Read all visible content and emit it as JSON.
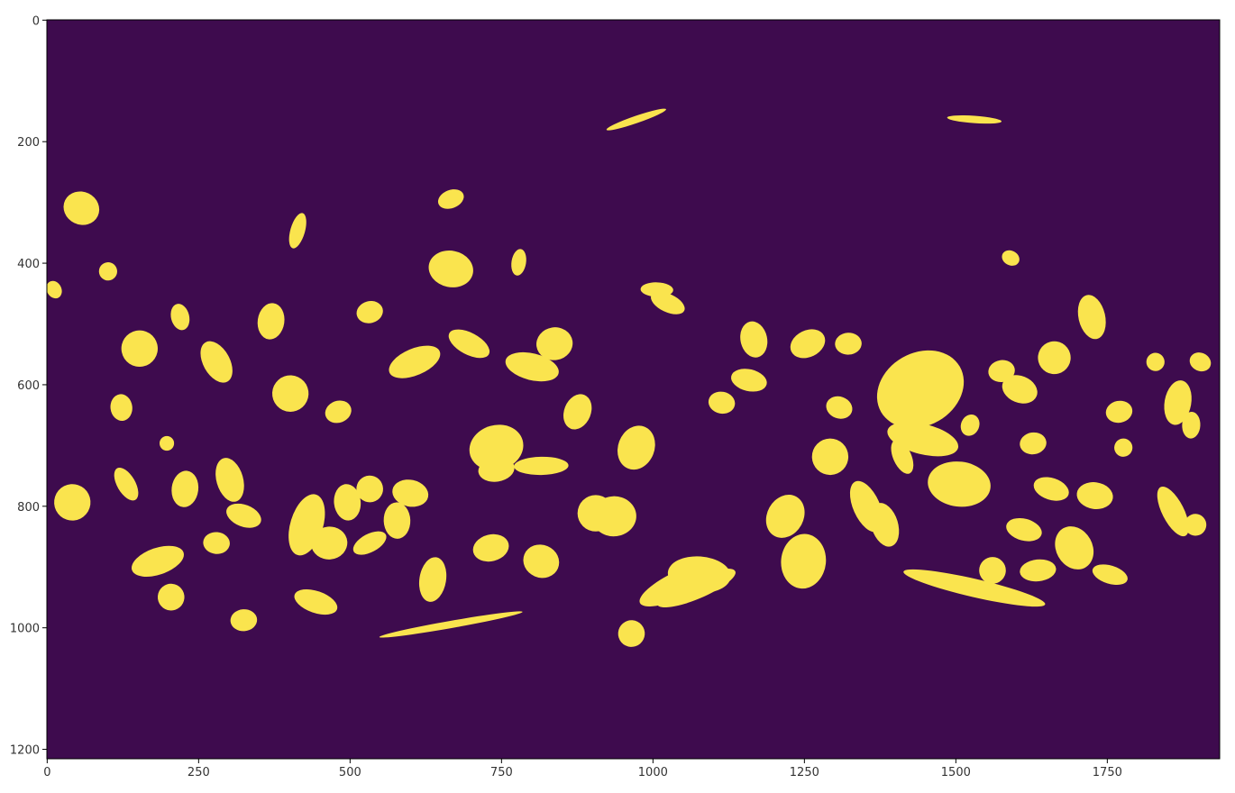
{
  "chart_data": {
    "type": "heatmap",
    "colormap": "viridis",
    "colors": {
      "background": "#3e0b4e",
      "foreground": "#fae44e"
    },
    "values_description_levels": [
      0,
      1
    ],
    "image_size": {
      "width": 1936,
      "height": 1216
    },
    "xlim": [
      0,
      1936
    ],
    "ylim": [
      1216,
      0
    ],
    "xticks": [
      0,
      250,
      500,
      750,
      1000,
      1250,
      1500,
      1750
    ],
    "yticks": [
      0,
      200,
      400,
      600,
      800,
      1000,
      1200
    ],
    "xtick_labels": [
      "0",
      "250",
      "500",
      "750",
      "1000",
      "1250",
      "1500",
      "1750"
    ],
    "ytick_labels": [
      "0",
      "200",
      "400",
      "600",
      "800",
      "1000",
      "1200"
    ],
    "grid": false,
    "regions_value1_ellipses_cx_cy_rx_ry": [
      [
        1442,
        608,
        75,
        60
      ],
      [
        1506,
        764,
        52,
        37
      ],
      [
        742,
        704,
        45,
        37
      ],
      [
        973,
        704,
        30,
        37
      ],
      [
        936,
        817,
        37,
        33
      ],
      [
        1047,
        928,
        75,
        22
      ],
      [
        667,
        410,
        37,
        30
      ],
      [
        153,
        541,
        30,
        30
      ],
      [
        57,
        310,
        30,
        27
      ],
      [
        402,
        615,
        30,
        30
      ],
      [
        481,
        645,
        22,
        18
      ],
      [
        429,
        831,
        27,
        52
      ],
      [
        496,
        794,
        22,
        30
      ],
      [
        1696,
        869,
        30,
        37
      ],
      [
        1730,
        783,
        30,
        22
      ],
      [
        1663,
        556,
        27,
        27
      ],
      [
        1606,
        608,
        30,
        22
      ],
      [
        1293,
        719,
        30,
        30
      ],
      [
        1353,
        801,
        22,
        45
      ],
      [
        1531,
        935,
        120,
        15
      ],
      [
        667,
        995,
        120,
        6
      ],
      [
        965,
        1010,
        22,
        22
      ],
      [
        1077,
        913,
        52,
        30
      ],
      [
        183,
        891,
        45,
        22
      ],
      [
        42,
        794,
        30,
        30
      ],
      [
        466,
        861,
        30,
        27
      ],
      [
        533,
        861,
        30,
        15
      ],
      [
        637,
        921,
        22,
        37
      ],
      [
        733,
        869,
        30,
        22
      ],
      [
        816,
        891,
        30,
        27
      ],
      [
        906,
        812,
        30,
        30
      ],
      [
        607,
        563,
        45,
        22
      ],
      [
        801,
        571,
        45,
        22
      ],
      [
        838,
        533,
        30,
        27
      ],
      [
        697,
        533,
        37,
        18
      ],
      [
        280,
        861,
        22,
        18
      ],
      [
        205,
        950,
        22,
        22
      ],
      [
        444,
        958,
        37,
        18
      ],
      [
        325,
        988,
        22,
        18
      ],
      [
        1859,
        809,
        18,
        45
      ],
      [
        1867,
        630,
        22,
        37
      ],
      [
        1725,
        489,
        22,
        37
      ],
      [
        1904,
        563,
        18,
        15
      ],
      [
        1830,
        563,
        15,
        15
      ],
      [
        1561,
        906,
        22,
        22
      ],
      [
        1613,
        839,
        30,
        18
      ],
      [
        1628,
        697,
        22,
        18
      ],
      [
        1219,
        817,
        30,
        37
      ],
      [
        1249,
        891,
        37,
        45
      ],
      [
        1383,
        831,
        22,
        37
      ],
      [
        1308,
        638,
        22,
        18
      ],
      [
        1323,
        533,
        22,
        18
      ],
      [
        1256,
        533,
        30,
        22
      ],
      [
        1114,
        630,
        22,
        18
      ],
      [
        1167,
        526,
        22,
        30
      ],
      [
        1025,
        466,
        30,
        15
      ],
      [
        1007,
        444,
        27,
        12
      ],
      [
        667,
        295,
        22,
        15
      ],
      [
        414,
        347,
        12,
        30
      ],
      [
        123,
        638,
        18,
        22
      ],
      [
        131,
        764,
        15,
        30
      ],
      [
        228,
        772,
        22,
        30
      ],
      [
        302,
        757,
        22,
        37
      ],
      [
        325,
        816,
        30,
        18
      ],
      [
        578,
        824,
        22,
        30
      ],
      [
        533,
        772,
        22,
        22
      ],
      [
        600,
        779,
        30,
        22
      ],
      [
        1770,
        645,
        22,
        18
      ],
      [
        1777,
        704,
        15,
        15
      ],
      [
        1889,
        667,
        15,
        22
      ],
      [
        1896,
        831,
        18,
        18
      ],
      [
        1755,
        913,
        30,
        15
      ],
      [
        1636,
        906,
        30,
        18
      ],
      [
        280,
        563,
        22,
        37
      ],
      [
        370,
        496,
        22,
        30
      ],
      [
        533,
        481,
        22,
        18
      ],
      [
        876,
        645,
        22,
        30
      ],
      [
        816,
        734,
        45,
        15
      ],
      [
        1412,
        719,
        15,
        30
      ],
      [
        1159,
        593,
        30,
        18
      ],
      [
        1576,
        578,
        22,
        18
      ],
      [
        1591,
        392,
        15,
        12
      ],
      [
        1531,
        164,
        45,
        6
      ],
      [
        973,
        164,
        52,
        6
      ],
      [
        1658,
        772,
        30,
        18
      ],
      [
        101,
        414,
        15,
        15
      ],
      [
        12,
        444,
        12,
        15
      ],
      [
        779,
        399,
        12,
        22
      ],
      [
        220,
        489,
        15,
        22
      ],
      [
        1524,
        667,
        15,
        18
      ],
      [
        198,
        697,
        12,
        12
      ],
      [
        1072,
        935,
        70,
        18
      ],
      [
        1446,
        690,
        60,
        25
      ],
      [
        742,
        740,
        30,
        20
      ]
    ]
  }
}
